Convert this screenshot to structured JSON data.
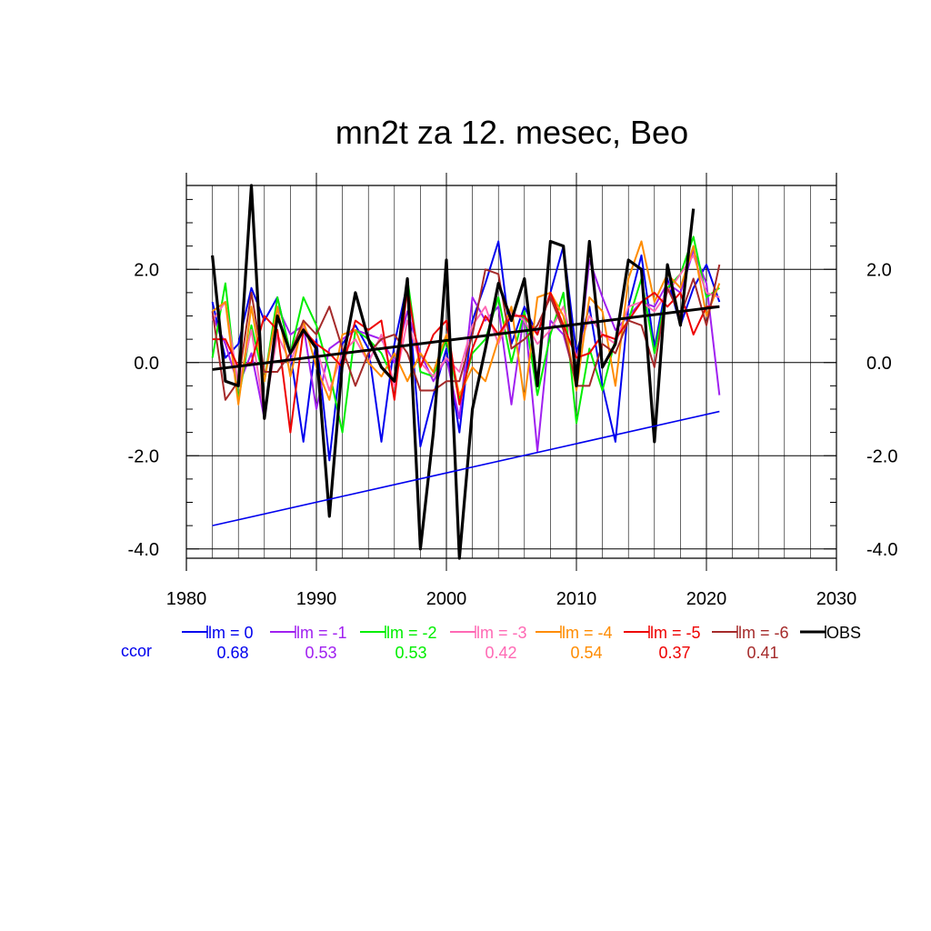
{
  "chart_data": {
    "type": "line",
    "title": "mn2t za 12. mesec, Beo",
    "xlabel": "",
    "ylabel": "",
    "xlim": [
      1980,
      2030
    ],
    "ylim": [
      -4.2,
      3.8
    ],
    "xticks": [
      "1980",
      "1990",
      "2000",
      "2010",
      "2020",
      "2030"
    ],
    "yticks": [
      "2.0",
      "0.0",
      "-2.0",
      "-4.0"
    ],
    "grid": true,
    "x": [
      1982,
      1983,
      1984,
      1985,
      1986,
      1987,
      1988,
      1989,
      1990,
      1991,
      1992,
      1993,
      1994,
      1995,
      1996,
      1997,
      1998,
      1999,
      2000,
      2001,
      2002,
      2003,
      2004,
      2005,
      2006,
      2007,
      2008,
      2009,
      2010,
      2011,
      2012,
      2013,
      2014,
      2015,
      2016,
      2017,
      2018,
      2019,
      2020,
      2021
    ],
    "series": [
      {
        "name": "lm = 0",
        "color": "#0000ee",
        "values": [
          1.3,
          0.1,
          0.4,
          1.6,
          0.9,
          1.4,
          0.2,
          -1.7,
          0.5,
          -2.1,
          0.4,
          0.8,
          0.3,
          -1.7,
          0.4,
          1.7,
          -1.8,
          -0.7,
          0.3,
          -1.5,
          0.9,
          1.7,
          2.6,
          0.4,
          1.2,
          0.6,
          1.5,
          2.5,
          0.2,
          1.2,
          -0.5,
          -1.7,
          1.2,
          2.3,
          0.3,
          1.8,
          0.8,
          1.6,
          2.1,
          1.3
        ]
      },
      {
        "name": "lm = -1",
        "color": "#a020f0",
        "values": [
          1.0,
          0.4,
          -0.5,
          0.2,
          -1.2,
          1.2,
          0.6,
          0.8,
          -1.0,
          0.3,
          0.5,
          0.7,
          0.6,
          0.5,
          0.0,
          1.1,
          0.2,
          -0.4,
          0.1,
          -1.2,
          1.4,
          0.9,
          1.2,
          -0.9,
          1.1,
          -1.9,
          0.9,
          0.6,
          -0.4,
          2.2,
          1.4,
          0.7,
          1.0,
          1.3,
          1.2,
          1.7,
          1.5,
          2.4,
          1.7,
          -0.7
        ]
      },
      {
        "name": "lm = -2",
        "color": "#00ee00",
        "values": [
          0.1,
          1.7,
          -0.8,
          0.8,
          -0.4,
          1.4,
          0.2,
          1.4,
          0.8,
          -0.2,
          -1.5,
          0.7,
          0.5,
          0.2,
          -0.4,
          1.8,
          -0.2,
          -0.3,
          0.5,
          -0.8,
          0.2,
          0.5,
          1.4,
          0.0,
          1.1,
          -0.7,
          0.6,
          1.5,
          -1.3,
          0.3,
          -0.6,
          0.5,
          0.9,
          1.8,
          0.2,
          1.6,
          1.9,
          2.7,
          1.4,
          1.6
        ]
      },
      {
        "name": "lm = -3",
        "color": "#ff69b4",
        "values": [
          0.9,
          1.3,
          -0.5,
          0.7,
          -1.1,
          0.6,
          0.0,
          0.8,
          0.3,
          -0.6,
          0.2,
          0.5,
          0.0,
          0.6,
          -0.5,
          0.9,
          0.0,
          -0.3,
          0.1,
          -0.2,
          0.8,
          1.2,
          0.4,
          1.1,
          0.9,
          0.4,
          0.7,
          1.2,
          0.1,
          1.0,
          0.6,
          0.4,
          1.2,
          1.3,
          1.1,
          1.5,
          1.9,
          2.3,
          1.5,
          1.4
        ]
      },
      {
        "name": "lm = -4",
        "color": "#ff8c00",
        "values": [
          1.1,
          1.3,
          -0.9,
          1.2,
          -0.4,
          1.2,
          -0.3,
          0.9,
          -0.1,
          -0.8,
          0.6,
          0.7,
          0.0,
          -0.3,
          0.2,
          -0.4,
          0.2,
          -0.2,
          0.6,
          -0.7,
          -0.1,
          -0.4,
          0.5,
          1.2,
          -0.8,
          1.4,
          1.5,
          1.0,
          -0.6,
          1.4,
          1.1,
          -0.5,
          1.8,
          2.6,
          1.3,
          1.9,
          1.6,
          2.5,
          1.0,
          1.7
        ]
      },
      {
        "name": "lm = -5",
        "color": "#ee0000",
        "values": [
          0.5,
          0.5,
          -0.1,
          0.0,
          1.0,
          0.7,
          -1.5,
          0.7,
          0.4,
          0.2,
          -0.1,
          0.9,
          0.7,
          0.9,
          -0.8,
          1.6,
          -0.1,
          0.6,
          0.9,
          -0.9,
          0.3,
          1.0,
          0.6,
          1.0,
          1.0,
          0.6,
          1.5,
          0.8,
          0.1,
          0.2,
          0.6,
          0.5,
          0.9,
          1.3,
          1.5,
          1.2,
          1.5,
          0.6,
          1.2,
          1.2
        ]
      },
      {
        "name": "lm = -6",
        "color": "#a52a2a",
        "values": [
          1.1,
          -0.8,
          -0.4,
          1.5,
          -0.2,
          -0.2,
          0.2,
          0.9,
          0.6,
          1.2,
          0.3,
          -0.5,
          0.2,
          0.5,
          0.6,
          0.2,
          -0.6,
          -0.6,
          -0.4,
          -0.4,
          0.6,
          2.0,
          1.9,
          0.3,
          0.5,
          0.8,
          1.4,
          0.7,
          -0.5,
          -0.5,
          0.4,
          0.2,
          0.9,
          0.8,
          -0.1,
          1.6,
          1.0,
          1.8,
          0.8,
          2.1
        ]
      },
      {
        "name": "OBS",
        "color": "#000000",
        "values": [
          2.3,
          -0.4,
          -0.5,
          3.8,
          -1.2,
          1.0,
          0.2,
          0.7,
          0.3,
          -3.3,
          0.0,
          1.5,
          0.5,
          -0.1,
          -0.4,
          1.8,
          -4.0,
          -1.5,
          2.2,
          -4.2,
          -1.0,
          0.3,
          1.7,
          0.9,
          1.8,
          -0.5,
          2.6,
          2.5,
          -0.5,
          2.6,
          -0.1,
          0.4,
          2.2,
          2.0,
          -1.7,
          2.1,
          0.8,
          3.3,
          null,
          null
        ]
      }
    ],
    "trend_lines": [
      {
        "series": "OBS",
        "color": "#000000",
        "x": [
          1982,
          2021
        ],
        "y": [
          -0.15,
          1.2
        ]
      },
      {
        "series": "lm = 0",
        "color": "#0000ee",
        "x": [
          1982,
          2021
        ],
        "y": [
          -3.5,
          -1.05
        ]
      }
    ],
    "legend_placement": "below",
    "ccor_label": "ccor",
    "ccor_color": "#0000ee",
    "ccor_values": [
      "0.68",
      "0.53",
      "0.53",
      "0.42",
      "0.54",
      "0.37",
      "0.41",
      ""
    ]
  }
}
